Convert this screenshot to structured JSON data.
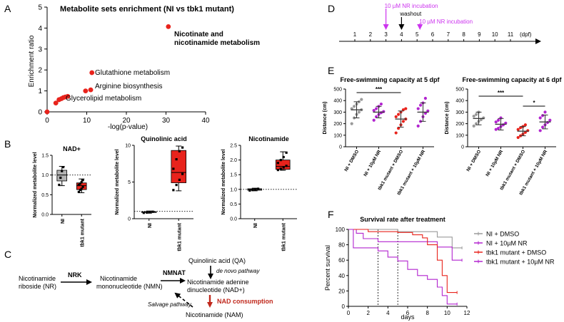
{
  "panel_labels": {
    "a": "A",
    "b": "B",
    "c": "C",
    "d": "D",
    "e": "E",
    "f": "F"
  },
  "colors": {
    "red": "#e8231c",
    "gray": "#9a9a9a",
    "purple": "#b224cf",
    "magenta": "#cc33ee",
    "darkred": "#c0281c",
    "box_red": "#e8231c",
    "box_gray": "#b3b3b3"
  },
  "chart_data": [
    {
      "id": "A",
      "type": "scatter",
      "title": "Metabolite sets enrichment (NI vs tbk1 mutant)",
      "xlabel": "-log(p-value)",
      "ylabel": "Enrichment ratio",
      "xlim": [
        0,
        40
      ],
      "ylim": [
        0,
        5
      ],
      "xticks": [
        "0",
        "10",
        "20",
        "30",
        "40"
      ],
      "yticks": [
        "0",
        "1",
        "2",
        "3",
        "4",
        "5"
      ],
      "points": [
        {
          "x": 0,
          "y": 0
        },
        {
          "x": 2.2,
          "y": 0.42
        },
        {
          "x": 3.0,
          "y": 0.58
        },
        {
          "x": 3.6,
          "y": 0.63
        },
        {
          "x": 4.1,
          "y": 0.68
        },
        {
          "x": 4.6,
          "y": 0.71
        },
        {
          "x": 5.2,
          "y": 0.74
        },
        {
          "x": 9.7,
          "y": 1.0
        },
        {
          "x": 11.0,
          "y": 1.05
        },
        {
          "x": 11.3,
          "y": 1.87
        },
        {
          "x": 30.6,
          "y": 4.07
        }
      ],
      "annotations": [
        {
          "text": "Nicotinate and",
          "x": 30.6,
          "y": 4.07,
          "bold": true
        },
        {
          "text": "nicotinamide metabolism",
          "x": 30.6,
          "y": 4.07,
          "bold": true
        },
        {
          "text": "Glutathione metabolism",
          "x": 11.3,
          "y": 1.87
        },
        {
          "text": "Arginine biosynthesis",
          "x": 11.0,
          "y": 1.05
        },
        {
          "text": "Glycerolipid metabolism",
          "x": 9.7,
          "y": 1.0
        }
      ]
    },
    {
      "id": "B1",
      "type": "box",
      "title": "NAD+",
      "ylabel": "Normalized metabolite level",
      "categories": [
        "NI",
        "tbk1 mutant"
      ],
      "ylim": [
        0,
        1.5
      ],
      "yticks": [
        "0.0",
        "0.5",
        "1.0",
        "1.5"
      ],
      "refline": 1,
      "boxes": [
        {
          "category": "NI",
          "min": 0.73,
          "q1": 0.85,
          "median": 1.0,
          "q3": 1.12,
          "max": 1.22,
          "points": [
            0.75,
            0.93,
            1.1,
            1.2
          ],
          "color": "gray"
        },
        {
          "category": "tbk1 mutant",
          "min": 0.55,
          "q1": 0.63,
          "median": 0.73,
          "q3": 0.8,
          "max": 0.9,
          "points": [
            0.57,
            0.62,
            0.65,
            0.7,
            0.75,
            0.78,
            0.82,
            0.87
          ],
          "color": "red"
        }
      ]
    },
    {
      "id": "B2",
      "type": "box",
      "title": "Quinolinic acid",
      "ylabel": "Normalized metabolite level",
      "categories": [
        "NI",
        "tbk1 mutant"
      ],
      "ylim": [
        0,
        10
      ],
      "yticks": [
        "0",
        "5",
        "10"
      ],
      "refline": 1,
      "boxes": [
        {
          "category": "NI",
          "min": 0.75,
          "q1": 0.85,
          "median": 0.9,
          "q3": 0.95,
          "max": 1.05,
          "points": [
            0.8,
            0.85,
            0.9,
            0.95
          ],
          "color": "gray"
        },
        {
          "category": "tbk1 mutant",
          "min": 3.8,
          "q1": 4.9,
          "median": 6.3,
          "q3": 9.3,
          "max": 9.9,
          "points": [
            3.9,
            4.6,
            5.3,
            6.1,
            6.8,
            8.1,
            9.2,
            9.7
          ],
          "color": "red"
        }
      ]
    },
    {
      "id": "B3",
      "type": "box",
      "title": "Nicotinamide",
      "ylabel": "Normalized metabolite level",
      "categories": [
        "NI",
        "tbk1 mutant"
      ],
      "ylim": [
        0,
        2.5
      ],
      "yticks": [
        "0.0",
        "0.5",
        "1.0",
        "1.5",
        "2.0",
        "2.5"
      ],
      "refline": 1,
      "boxes": [
        {
          "category": "NI",
          "min": 0.95,
          "q1": 0.97,
          "median": 1.0,
          "q3": 1.02,
          "max": 1.04,
          "points": [
            0.96,
            0.98,
            1.0,
            1.02
          ],
          "color": "gray"
        },
        {
          "category": "tbk1 mutant",
          "min": 1.65,
          "q1": 1.68,
          "median": 1.78,
          "q3": 2.0,
          "max": 2.28,
          "points": [
            1.66,
            1.7,
            1.75,
            1.8,
            1.9,
            2.0,
            2.1,
            2.25
          ],
          "color": "red"
        }
      ]
    },
    {
      "id": "E1",
      "type": "scatter",
      "title": "Free-swimming capacity at 5 dpf",
      "ylabel": "Distance (cm)",
      "categories": [
        "NI + DMSO",
        "NI + 10µM NR",
        "tbk1 mutant + DMSO",
        "tbk1 mutant + 10µM NR"
      ],
      "ylim": [
        0,
        500
      ],
      "yticks": [
        "0",
        "100",
        "200",
        "300",
        "400",
        "500"
      ],
      "groups": [
        {
          "category": "NI + DMSO",
          "mean": 320,
          "sd": 70,
          "points": [
            200,
            250,
            280,
            300,
            320,
            330,
            350,
            370,
            390,
            410
          ],
          "color": "gray"
        },
        {
          "category": "NI + 10µM NR",
          "mean": 300,
          "sd": 50,
          "points": [
            230,
            260,
            280,
            295,
            305,
            315,
            330,
            350,
            370
          ],
          "color": "purple"
        },
        {
          "category": "tbk1 mutant + DMSO",
          "mean": 240,
          "sd": 70,
          "points": [
            120,
            160,
            190,
            220,
            240,
            260,
            280,
            300,
            320,
            330
          ],
          "color": "red"
        },
        {
          "category": "tbk1 mutant + 10µM NR",
          "mean": 300,
          "sd": 80,
          "points": [
            180,
            220,
            260,
            290,
            310,
            330,
            360,
            380,
            420
          ],
          "color": "purple"
        }
      ],
      "significance": [
        {
          "from": "NI + DMSO",
          "to": "tbk1 mutant + DMSO",
          "label": "***"
        }
      ]
    },
    {
      "id": "E2",
      "type": "scatter",
      "title": "Free-swimming capacity at 6 dpf",
      "ylabel": "Distance (cm)",
      "categories": [
        "NI + DMSO",
        "NI + 10µM NR",
        "tbk1 mutant + DMSO",
        "tbk1 mutant + 10µM NR"
      ],
      "ylim": [
        0,
        500
      ],
      "yticks": [
        "0",
        "100",
        "200",
        "300",
        "400",
        "500"
      ],
      "groups": [
        {
          "category": "NI + DMSO",
          "mean": 245,
          "sd": 55,
          "points": [
            180,
            200,
            220,
            235,
            250,
            265,
            280,
            300
          ],
          "color": "gray"
        },
        {
          "category": "NI + 10µM NR",
          "mean": 195,
          "sd": 50,
          "points": [
            150,
            160,
            175,
            190,
            205,
            215,
            230,
            250
          ],
          "color": "purple"
        },
        {
          "category": "tbk1 mutant + DMSO",
          "mean": 135,
          "sd": 40,
          "points": [
            80,
            95,
            110,
            125,
            140,
            150,
            165,
            175,
            190
          ],
          "color": "red"
        },
        {
          "category": "tbk1 mutant + 10µM NR",
          "mean": 215,
          "sd": 60,
          "points": [
            140,
            170,
            190,
            210,
            230,
            250,
            270,
            300
          ],
          "color": "purple"
        }
      ],
      "significance": [
        {
          "from": "NI + DMSO",
          "to": "tbk1 mutant + DMSO",
          "label": "***"
        },
        {
          "from": "tbk1 mutant + DMSO",
          "to": "tbk1 mutant + 10µM NR",
          "label": "*"
        }
      ]
    },
    {
      "id": "F",
      "type": "line",
      "title": "Survival rate after treatment",
      "xlabel": "days",
      "ylabel": "Percent survival",
      "xlim": [
        0,
        12
      ],
      "ylim": [
        0,
        100
      ],
      "xticks": [
        "0",
        "2",
        "4",
        "6",
        "8",
        "10",
        "12"
      ],
      "yticks": [
        "0",
        "20",
        "40",
        "60",
        "80",
        "100"
      ],
      "dashed_x": [
        3,
        5
      ],
      "series": [
        {
          "name": "NI + DMSO",
          "color": "gray",
          "points": [
            [
              0,
              100
            ],
            [
              5,
              100
            ],
            [
              5,
              97
            ],
            [
              9,
              97
            ],
            [
              9,
              90
            ],
            [
              10.5,
              90
            ],
            [
              10.5,
              76
            ],
            [
              11.5,
              76
            ]
          ]
        },
        {
          "name": "NI + 10µM NR",
          "color": "purple",
          "points": [
            [
              0,
              100
            ],
            [
              0.8,
              100
            ],
            [
              0.8,
              95
            ],
            [
              1.5,
              95
            ],
            [
              1.5,
              88
            ],
            [
              3,
              88
            ],
            [
              3,
              84
            ],
            [
              9,
              84
            ],
            [
              9,
              77
            ],
            [
              10.5,
              77
            ],
            [
              10.5,
              60
            ],
            [
              11.5,
              60
            ]
          ]
        },
        {
          "name": "tbk1 mutant + DMSO",
          "color": "red",
          "points": [
            [
              0,
              100
            ],
            [
              2,
              100
            ],
            [
              2,
              97
            ],
            [
              5,
              97
            ],
            [
              5,
              96
            ],
            [
              6.5,
              96
            ],
            [
              6.5,
              93
            ],
            [
              7.5,
              93
            ],
            [
              7.5,
              89
            ],
            [
              8,
              89
            ],
            [
              8,
              80
            ],
            [
              9,
              80
            ],
            [
              9,
              60
            ],
            [
              9.5,
              60
            ],
            [
              9.5,
              40
            ],
            [
              10,
              40
            ],
            [
              10,
              18
            ],
            [
              11,
              18
            ]
          ]
        },
        {
          "name": "tbk1 mutant + 10µM NR",
          "color": "purple",
          "points": [
            [
              0,
              100
            ],
            [
              0.5,
              100
            ],
            [
              0.5,
              76
            ],
            [
              3,
              76
            ],
            [
              3,
              72
            ],
            [
              4,
              72
            ],
            [
              4,
              64
            ],
            [
              5,
              64
            ],
            [
              5,
              59
            ],
            [
              6,
              59
            ],
            [
              6,
              48
            ],
            [
              7,
              48
            ],
            [
              7,
              40
            ],
            [
              8,
              40
            ],
            [
              8,
              35
            ],
            [
              9,
              35
            ],
            [
              9,
              25
            ],
            [
              9.5,
              25
            ],
            [
              9.5,
              14
            ],
            [
              10,
              14
            ],
            [
              10,
              3
            ],
            [
              11,
              3
            ]
          ]
        }
      ],
      "legend": [
        "NI + DMSO",
        "NI + 10µM NR",
        "tbk1 mutant + DMSO",
        "tbk1 mutant + 10µM NR"
      ]
    }
  ],
  "timeline": {
    "ticks": [
      "1",
      "2",
      "3",
      "4",
      "5",
      "6",
      "7",
      "8",
      "9",
      "10",
      "11"
    ],
    "unit": "(dpf)",
    "events": [
      {
        "label": "10 µM NR incubation",
        "day": 3,
        "color": "magenta"
      },
      {
        "label": "washout",
        "day": 4,
        "color": "black"
      },
      {
        "label": "10 µM NR incubation",
        "day": 5,
        "color": "magenta"
      }
    ]
  },
  "pathway": {
    "nr": [
      "Nicotinamide",
      "riboside (NR)"
    ],
    "nrk": "NRK",
    "nmn": [
      "Nicotinamide",
      "mononucleotide (NMN)"
    ],
    "nmnat": "NMNAT",
    "qa": "Quinolinic acid (QA)",
    "denovo": "de novo pathway",
    "nad": [
      "Nicotinamide adenine",
      "dinucleotide (NAD+)"
    ],
    "consumption": "NAD consumption",
    "salvage": "Salvage pathway",
    "nam": "Nicotinamide (NAM)"
  }
}
